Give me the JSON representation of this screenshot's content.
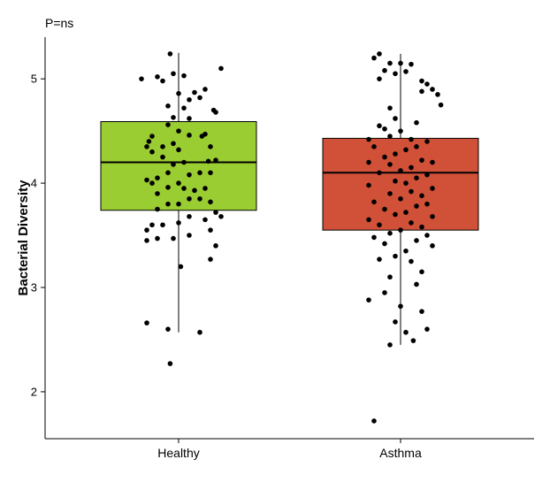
{
  "chart_data": {
    "type": "box",
    "annotation": "P=ns",
    "title": "",
    "xlabel": "",
    "ylabel": "Bacterial Diversity",
    "ylim": [
      1.55,
      5.4
    ],
    "yticks": [
      2,
      3,
      4,
      5
    ],
    "grid": false,
    "legend": "none",
    "categories": [
      "Healthy",
      "Asthma"
    ],
    "series": [
      {
        "category": "Healthy",
        "color": "#9ACD32",
        "box": {
          "min": 2.57,
          "q1": 3.74,
          "median": 4.2,
          "q3": 4.59,
          "max": 5.25
        },
        "points": [
          [
            -0.35,
            5.0
          ],
          [
            -0.2,
            5.02
          ],
          [
            -0.15,
            4.98
          ],
          [
            -0.05,
            5.05
          ],
          [
            0.05,
            5.03
          ],
          [
            0.4,
            5.1
          ],
          [
            0.25,
            4.9
          ],
          [
            -0.08,
            5.24
          ],
          [
            0.15,
            4.87
          ],
          [
            0.2,
            4.82
          ],
          [
            0.0,
            4.86
          ],
          [
            0.1,
            4.8
          ],
          [
            0.05,
            4.72
          ],
          [
            -0.1,
            4.74
          ],
          [
            0.33,
            4.7
          ],
          [
            0.35,
            4.68
          ],
          [
            0.1,
            4.62
          ],
          [
            -0.05,
            4.63
          ],
          [
            -0.1,
            4.56
          ],
          [
            0.0,
            4.5
          ],
          [
            0.22,
            4.45
          ],
          [
            0.25,
            4.47
          ],
          [
            0.1,
            4.46
          ],
          [
            -0.25,
            4.45
          ],
          [
            -0.28,
            4.4
          ],
          [
            -0.05,
            4.38
          ],
          [
            -0.15,
            4.35
          ],
          [
            -0.3,
            4.35
          ],
          [
            -0.25,
            4.3
          ],
          [
            0.0,
            4.32
          ],
          [
            0.3,
            4.35
          ],
          [
            -0.15,
            4.25
          ],
          [
            0.35,
            4.22
          ],
          [
            0.28,
            4.21
          ],
          [
            0.05,
            4.2
          ],
          [
            -0.05,
            4.18
          ],
          [
            -0.1,
            4.1
          ],
          [
            0.1,
            4.08
          ],
          [
            0.2,
            4.1
          ],
          [
            0.3,
            4.1
          ],
          [
            -0.2,
            4.05
          ],
          [
            -0.3,
            4.03
          ],
          [
            -0.25,
            4.0
          ],
          [
            0.0,
            4.0
          ],
          [
            0.25,
            3.95
          ],
          [
            -0.1,
            3.96
          ],
          [
            0.05,
            3.95
          ],
          [
            0.15,
            3.93
          ],
          [
            -0.2,
            3.9
          ],
          [
            0.1,
            3.85
          ],
          [
            0.2,
            3.85
          ],
          [
            0.3,
            3.82
          ],
          [
            -0.1,
            3.8
          ],
          [
            0.0,
            3.8
          ],
          [
            -0.2,
            3.75
          ],
          [
            0.35,
            3.72
          ],
          [
            0.4,
            3.68
          ],
          [
            0.1,
            3.68
          ],
          [
            0.25,
            3.65
          ],
          [
            0.0,
            3.62
          ],
          [
            -0.15,
            3.6
          ],
          [
            -0.25,
            3.6
          ],
          [
            -0.3,
            3.55
          ],
          [
            0.3,
            3.55
          ],
          [
            0.1,
            3.5
          ],
          [
            -0.05,
            3.47
          ],
          [
            -0.2,
            3.47
          ],
          [
            -0.3,
            3.45
          ],
          [
            0.35,
            3.4
          ],
          [
            0.3,
            3.27
          ],
          [
            0.02,
            3.2
          ],
          [
            -0.3,
            2.66
          ],
          [
            -0.1,
            2.6
          ],
          [
            0.2,
            2.57
          ],
          [
            -0.08,
            2.27
          ]
        ]
      },
      {
        "category": "Asthma",
        "color": "#D05038",
        "box": {
          "min": 2.45,
          "q1": 3.55,
          "median": 4.1,
          "q3": 4.43,
          "max": 5.24
        },
        "points": [
          [
            -0.2,
            5.24
          ],
          [
            -0.25,
            5.2
          ],
          [
            -0.1,
            5.15
          ],
          [
            0.0,
            5.15
          ],
          [
            0.1,
            5.14
          ],
          [
            -0.05,
            5.05
          ],
          [
            -0.15,
            5.08
          ],
          [
            0.05,
            5.07
          ],
          [
            -0.2,
            5.0
          ],
          [
            0.2,
            4.98
          ],
          [
            0.25,
            4.95
          ],
          [
            0.3,
            4.9
          ],
          [
            0.2,
            4.88
          ],
          [
            0.35,
            4.85
          ],
          [
            0.38,
            4.75
          ],
          [
            -0.1,
            4.72
          ],
          [
            -0.05,
            4.62
          ],
          [
            0.15,
            4.58
          ],
          [
            -0.2,
            4.55
          ],
          [
            -0.15,
            4.52
          ],
          [
            0.0,
            4.5
          ],
          [
            -0.1,
            4.45
          ],
          [
            0.1,
            4.42
          ],
          [
            -0.3,
            4.42
          ],
          [
            0.25,
            4.4
          ],
          [
            0.15,
            4.35
          ],
          [
            -0.25,
            4.35
          ],
          [
            0.05,
            4.32
          ],
          [
            -0.05,
            4.28
          ],
          [
            -0.15,
            4.25
          ],
          [
            0.2,
            4.22
          ],
          [
            0.3,
            4.2
          ],
          [
            -0.3,
            4.2
          ],
          [
            -0.1,
            4.18
          ],
          [
            0.1,
            4.15
          ],
          [
            0.0,
            4.12
          ],
          [
            -0.2,
            4.1
          ],
          [
            0.25,
            4.08
          ],
          [
            0.15,
            4.05
          ],
          [
            -0.05,
            4.02
          ],
          [
            0.05,
            4.0
          ],
          [
            -0.3,
            3.98
          ],
          [
            0.3,
            3.95
          ],
          [
            0.1,
            3.92
          ],
          [
            -0.1,
            3.9
          ],
          [
            0.2,
            3.88
          ],
          [
            0.0,
            3.85
          ],
          [
            -0.25,
            3.82
          ],
          [
            0.25,
            3.8
          ],
          [
            0.15,
            3.78
          ],
          [
            -0.15,
            3.75
          ],
          [
            0.05,
            3.72
          ],
          [
            -0.05,
            3.7
          ],
          [
            0.3,
            3.68
          ],
          [
            -0.3,
            3.65
          ],
          [
            0.1,
            3.62
          ],
          [
            -0.2,
            3.6
          ],
          [
            0.2,
            3.58
          ],
          [
            0.0,
            3.55
          ],
          [
            -0.1,
            3.52
          ],
          [
            0.25,
            3.5
          ],
          [
            -0.25,
            3.48
          ],
          [
            0.15,
            3.45
          ],
          [
            -0.15,
            3.42
          ],
          [
            0.3,
            3.4
          ],
          [
            0.05,
            3.35
          ],
          [
            -0.05,
            3.3
          ],
          [
            0.1,
            3.25
          ],
          [
            -0.2,
            3.27
          ],
          [
            0.2,
            3.15
          ],
          [
            -0.1,
            3.1
          ],
          [
            0.15,
            3.03
          ],
          [
            -0.15,
            2.95
          ],
          [
            0.0,
            2.82
          ],
          [
            0.2,
            2.77
          ],
          [
            -0.3,
            2.88
          ],
          [
            0.25,
            2.6
          ],
          [
            -0.05,
            2.67
          ],
          [
            0.05,
            2.57
          ],
          [
            -0.1,
            2.45
          ],
          [
            0.12,
            2.49
          ],
          [
            -0.25,
            1.72
          ]
        ]
      }
    ]
  }
}
